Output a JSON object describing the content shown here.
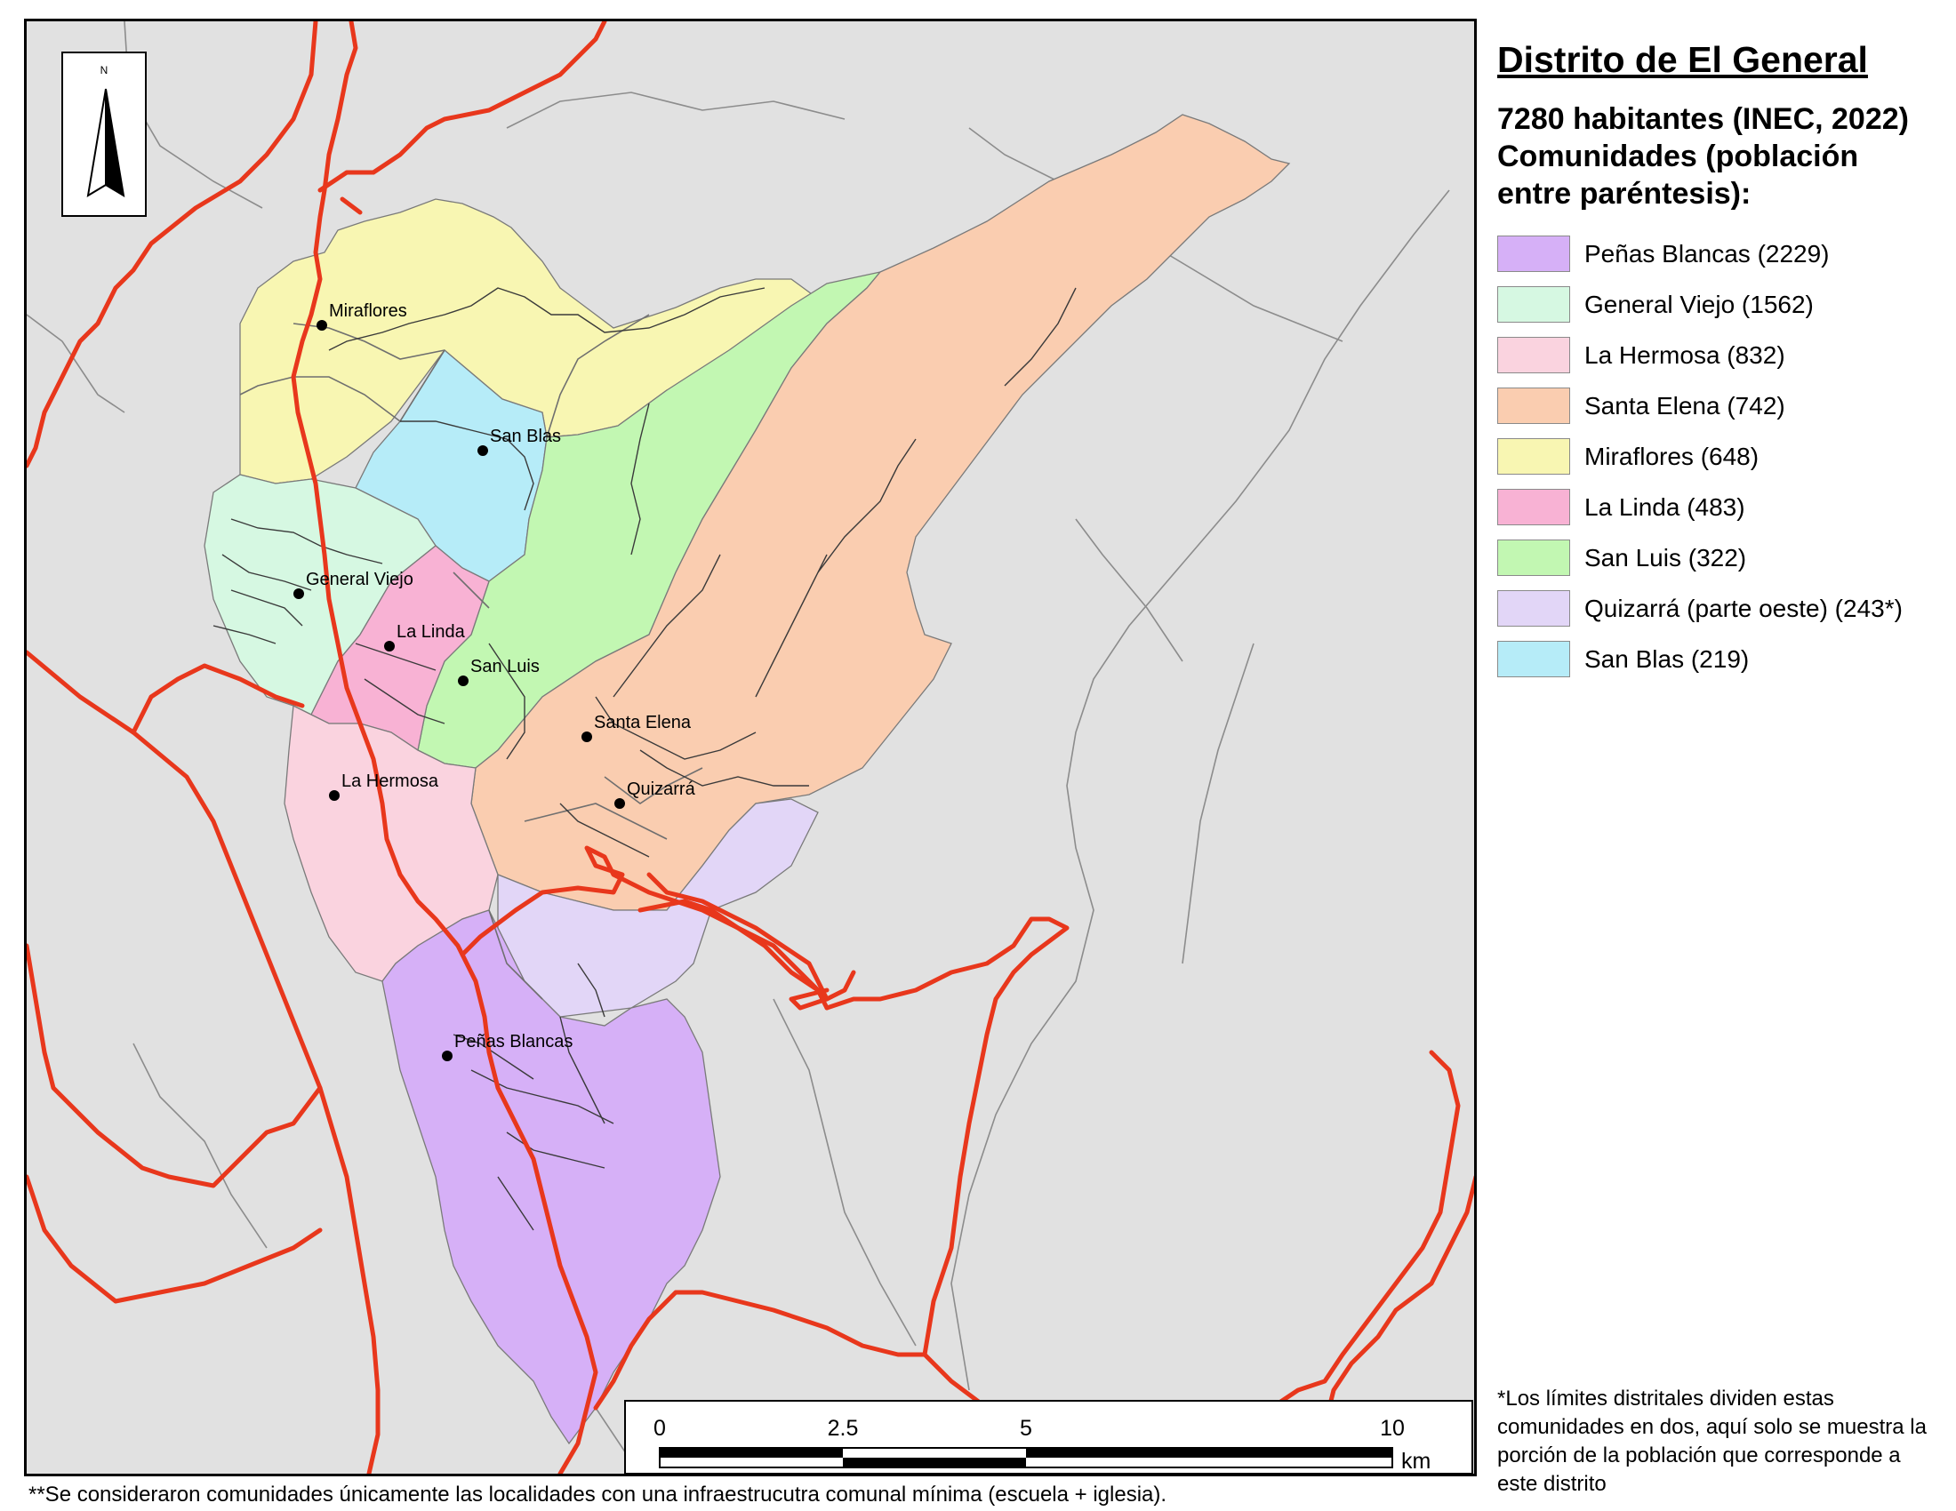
{
  "legend": {
    "title": "Distrito de El General",
    "subtitle_line1": "7280 habitantes (INEC, 2022)",
    "subtitle_line2": "Comunidades (población",
    "subtitle_line3": "entre paréntesis):",
    "items": [
      {
        "label": "Peñas Blancas (2229)",
        "color": "#d6b0f7"
      },
      {
        "label": "General Viejo (1562)",
        "color": "#d6f8e2"
      },
      {
        "label": "La Hermosa (832)",
        "color": "#fad3df"
      },
      {
        "label": "Santa Elena (742)",
        "color": "#facdb0"
      },
      {
        "label": "Miraflores (648)",
        "color": "#f8f6b2"
      },
      {
        "label": "La Linda (483)",
        "color": "#f8b2d4"
      },
      {
        "label": "San Luis (322)",
        "color": "#c2f7b2"
      },
      {
        "label": "Quizarrá (parte oeste) (243*)",
        "color": "#e2d6f7"
      },
      {
        "label": "San Blas (219)",
        "color": "#b6ecf8"
      }
    ]
  },
  "map": {
    "north_label": "N",
    "places": [
      "Miraflores",
      "San Blas",
      "General Viejo",
      "La Linda",
      "San Luis",
      "Santa Elena",
      "Quizarrá",
      "La Hermosa",
      "Peñas Blancas"
    ],
    "scale": {
      "ticks": [
        "0",
        "2.5",
        "5",
        "10"
      ],
      "unit": "km"
    },
    "colors": {
      "background": "#e1e1e1",
      "district_boundary": "#e8371c"
    }
  },
  "notes": {
    "right": "*Los límites distritales dividen estas comunidades en dos, aquí solo se muestra la porción de la población que corresponde a este distrito",
    "bottom": "**Se consideraron comunidades únicamente las localidades con una infraestrucutra comunal mínima (escuela + iglesia)."
  }
}
